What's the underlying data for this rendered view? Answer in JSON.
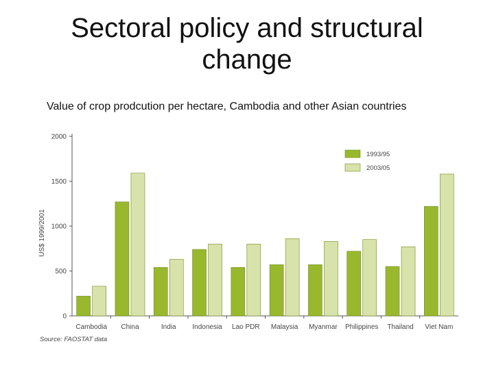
{
  "slide": {
    "title_line1": "Sectoral policy and structural",
    "title_line2": "change",
    "subtitle": "Value of crop prodcution per hectare, Cambodia and other Asian countries"
  },
  "chart_data": {
    "type": "bar",
    "categories": [
      "Cambodia",
      "China",
      "India",
      "Indonesia",
      "Lao PDR",
      "Malaysia",
      "Myanmar",
      "Philippines",
      "Thailand",
      "Viet Nam"
    ],
    "series": [
      {
        "name": "1993/95",
        "values": [
          220,
          1270,
          540,
          740,
          540,
          570,
          570,
          720,
          550,
          1220
        ],
        "color": "#9ab82e"
      },
      {
        "name": "2003/05",
        "values": [
          330,
          1590,
          630,
          800,
          800,
          860,
          830,
          850,
          770,
          1580
        ],
        "color": "#d7e3aa"
      }
    ],
    "ylabel": "US$ 1999/2001",
    "yticks": [
      0,
      500,
      1000,
      1500,
      2000
    ],
    "ylim": [
      0,
      2000
    ],
    "legend_position": "top-right",
    "grid": false,
    "source": "Source: FAOSTAT data"
  }
}
